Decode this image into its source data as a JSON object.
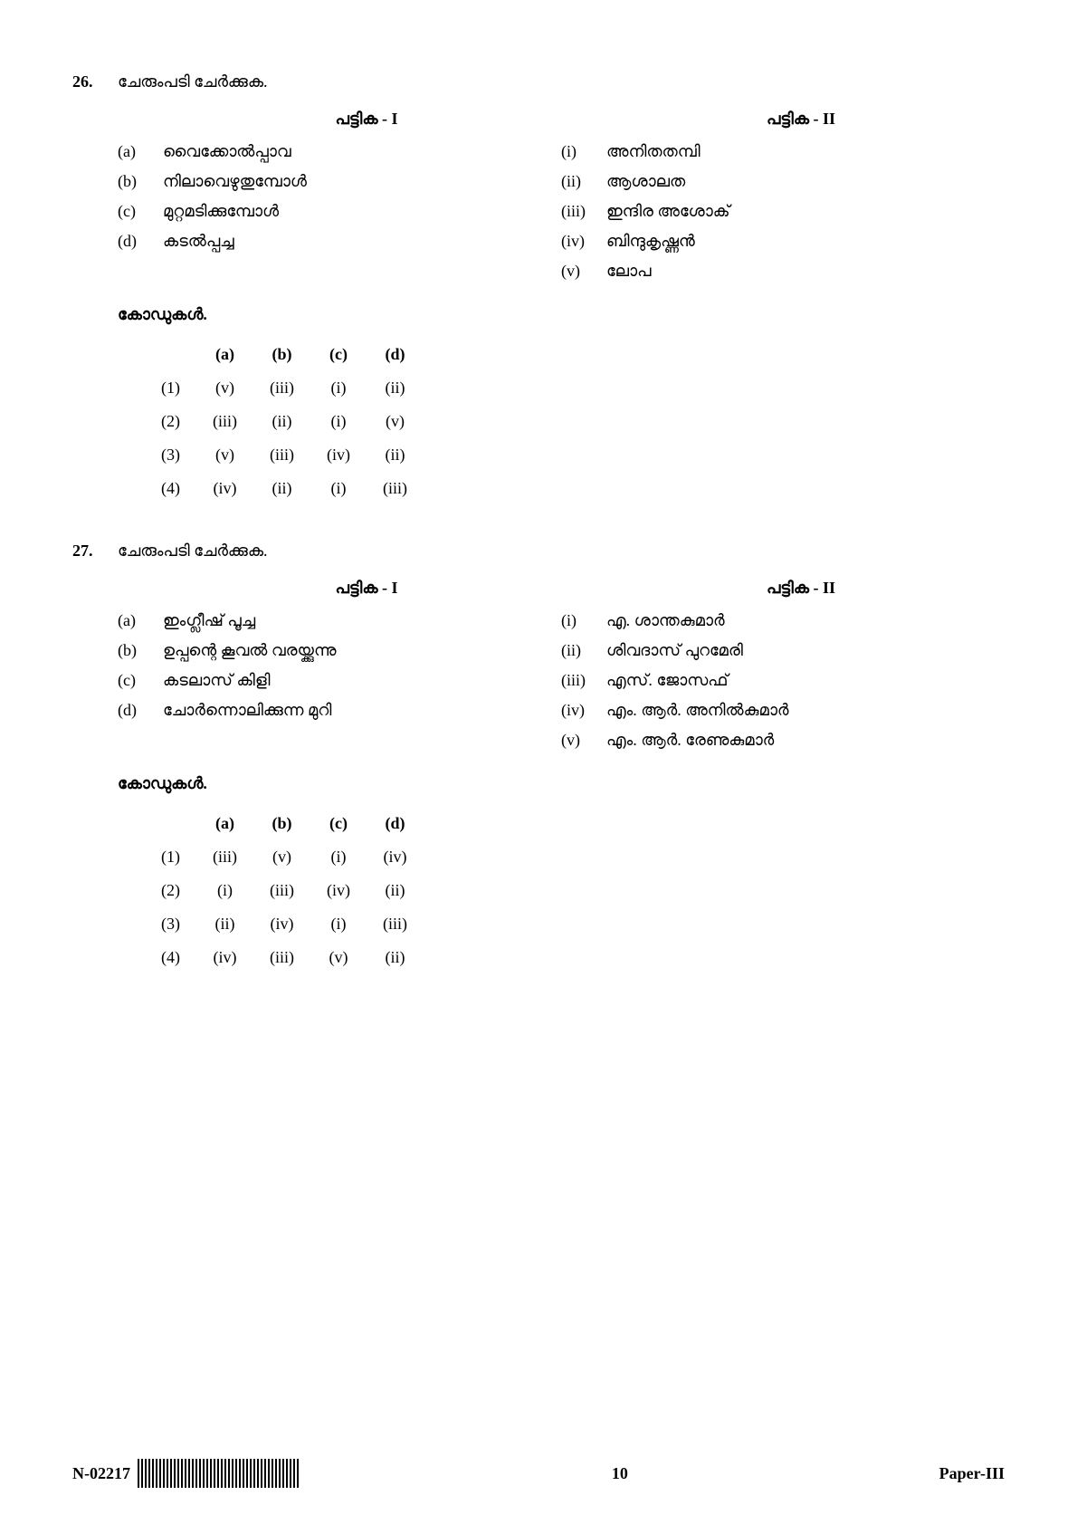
{
  "questions": [
    {
      "number": "26.",
      "text": "ചേരുംപടി ചേർക്കുക.",
      "list1_title": "പട്ടിക - I",
      "list2_title": "പട്ടിക - II",
      "list1": [
        {
          "label": "(a)",
          "text": "വൈക്കോൽപ്പാവ"
        },
        {
          "label": "(b)",
          "text": "നിലാവെഴുതുമ്പോൾ"
        },
        {
          "label": "(c)",
          "text": "മുറ്റമടിക്കുമ്പോൾ"
        },
        {
          "label": "(d)",
          "text": "കടൽപ്പച്ച"
        }
      ],
      "list2": [
        {
          "label": "(i)",
          "text": "അനിതതമ്പി"
        },
        {
          "label": "(ii)",
          "text": "ആശാലത"
        },
        {
          "label": "(iii)",
          "text": "ഇന്ദിര അശോക്"
        },
        {
          "label": "(iv)",
          "text": "ബിന്ദുകൃഷ്ണൻ"
        },
        {
          "label": "(v)",
          "text": "ലോപ"
        }
      ],
      "codes_title": "കോഡുകൾ.",
      "codes_header": [
        "(a)",
        "(b)",
        "(c)",
        "(d)"
      ],
      "codes": [
        {
          "num": "(1)",
          "vals": [
            "(v)",
            "(iii)",
            "(i)",
            "(ii)"
          ]
        },
        {
          "num": "(2)",
          "vals": [
            "(iii)",
            "(ii)",
            "(i)",
            "(v)"
          ]
        },
        {
          "num": "(3)",
          "vals": [
            "(v)",
            "(iii)",
            "(iv)",
            "(ii)"
          ]
        },
        {
          "num": "(4)",
          "vals": [
            "(iv)",
            "(ii)",
            "(i)",
            "(iii)"
          ]
        }
      ]
    },
    {
      "number": "27.",
      "text": "ചേരുംപടി ചേർക്കുക.",
      "list1_title": "പട്ടിക - I",
      "list2_title": "പട്ടിക - II",
      "list1": [
        {
          "label": "(a)",
          "text": "ഇംഗ്ലീഷ് പൂച്ച"
        },
        {
          "label": "(b)",
          "text": "ഉപ്പന്റെ കൂവൽ വരയ്ക്കുന്നു"
        },
        {
          "label": "(c)",
          "text": "കടലാസ് കിളി"
        },
        {
          "label": "(d)",
          "text": "ചോർന്നൊലിക്കുന്ന മുറി"
        }
      ],
      "list2": [
        {
          "label": "(i)",
          "text": "എ. ശാന്തകുമാർ"
        },
        {
          "label": "(ii)",
          "text": "ശിവദാസ് പുറമേരി"
        },
        {
          "label": "(iii)",
          "text": "എസ്. ജോസഫ്"
        },
        {
          "label": "(iv)",
          "text": "എം. ആർ. അനിൽകുമാർ"
        },
        {
          "label": "(v)",
          "text": "എം. ആർ. രേണുകുമാർ"
        }
      ],
      "codes_title": "കോഡുകൾ.",
      "codes_header": [
        "(a)",
        "(b)",
        "(c)",
        "(d)"
      ],
      "codes": [
        {
          "num": "(1)",
          "vals": [
            "(iii)",
            "(v)",
            "(i)",
            "(iv)"
          ]
        },
        {
          "num": "(2)",
          "vals": [
            "(i)",
            "(iii)",
            "(iv)",
            "(ii)"
          ]
        },
        {
          "num": "(3)",
          "vals": [
            "(ii)",
            "(iv)",
            "(i)",
            "(iii)"
          ]
        },
        {
          "num": "(4)",
          "vals": [
            "(iv)",
            "(iii)",
            "(v)",
            "(ii)"
          ]
        }
      ]
    }
  ],
  "footer": {
    "code": "N-02217",
    "page": "10",
    "paper": "Paper-III"
  }
}
